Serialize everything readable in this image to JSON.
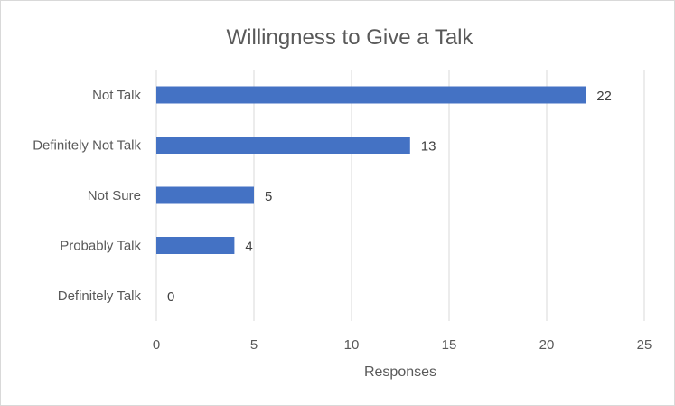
{
  "chart_data": {
    "type": "bar",
    "orientation": "horizontal",
    "title": "Willingness to Give a Talk",
    "xlabel": "Responses",
    "ylabel": "",
    "categories": [
      "Not Talk",
      "Definitely Not Talk",
      "Not Sure",
      "Probably Talk",
      "Definitely Talk"
    ],
    "values": [
      22,
      13,
      5,
      4,
      0
    ],
    "xlim": [
      0,
      25
    ],
    "xticks": [
      0,
      5,
      10,
      15,
      20,
      25
    ],
    "grid": true,
    "legend": "none",
    "bar_color": "#4472C4",
    "data_labels": true
  }
}
